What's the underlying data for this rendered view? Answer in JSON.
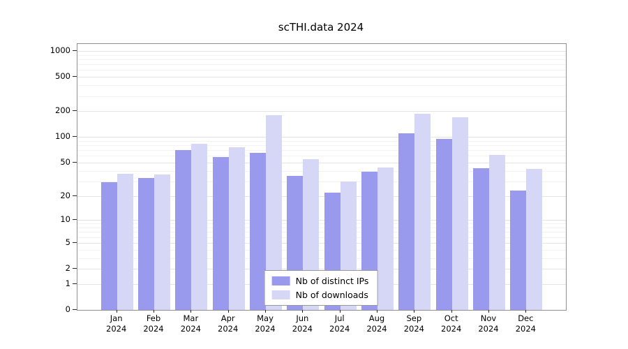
{
  "title": "scTHI.data 2024",
  "chart_data": {
    "type": "bar",
    "title": "scTHI.data 2024",
    "categories": [
      "Jan 2024",
      "Feb 2024",
      "Mar 2024",
      "Apr 2024",
      "May 2024",
      "Jun 2024",
      "Jul 2024",
      "Aug 2024",
      "Sep 2024",
      "Oct 2024",
      "Nov 2024",
      "Dec 2024"
    ],
    "series": [
      {
        "name": "Nb of distinct IPs",
        "color": "#9999ee",
        "values": [
          29,
          33,
          70,
          58,
          65,
          35,
          22,
          39,
          110,
          95,
          43,
          23
        ]
      },
      {
        "name": "Nb of downloads",
        "color": "#d6d6f7",
        "values": [
          37,
          36,
          83,
          75,
          180,
          55,
          30,
          44,
          187,
          170,
          61,
          42
        ]
      }
    ],
    "yticks": [
      0,
      1,
      2,
      5,
      10,
      20,
      50,
      100,
      200,
      500,
      1000
    ],
    "ylim": [
      0,
      1000
    ],
    "yscale": "log10(v+1)",
    "grid": true,
    "legend_position": "bottom-center-inside"
  }
}
